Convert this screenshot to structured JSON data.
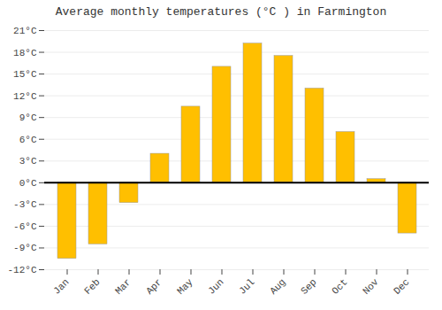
{
  "chart_data": {
    "type": "bar",
    "title": "Average monthly temperatures (°C ) in Farmington",
    "categories": [
      "Jan",
      "Feb",
      "Mar",
      "Apr",
      "May",
      "Jun",
      "Jul",
      "Aug",
      "Sep",
      "Oct",
      "Nov",
      "Dec"
    ],
    "values": [
      -10.5,
      -8.5,
      -2.8,
      4.0,
      10.5,
      16.0,
      19.2,
      17.5,
      13.0,
      7.0,
      0.5,
      -7.0
    ],
    "color": "#FFBF00",
    "ylim": [
      -12,
      21
    ],
    "yticks": [
      {
        "value": -12,
        "label": "-12°C"
      },
      {
        "value": -9,
        "label": "-9°C"
      },
      {
        "value": -6,
        "label": "-6°C"
      },
      {
        "value": -3,
        "label": "-3°C"
      },
      {
        "value": 0,
        "label": "0°C"
      },
      {
        "value": 3,
        "label": "3°C"
      },
      {
        "value": 6,
        "label": "6°C"
      },
      {
        "value": 9,
        "label": "9°C"
      },
      {
        "value": 12,
        "label": "12°C"
      },
      {
        "value": 15,
        "label": "15°C"
      },
      {
        "value": 18,
        "label": "18°C"
      },
      {
        "value": 21,
        "label": "21°C"
      }
    ],
    "grid": true
  }
}
